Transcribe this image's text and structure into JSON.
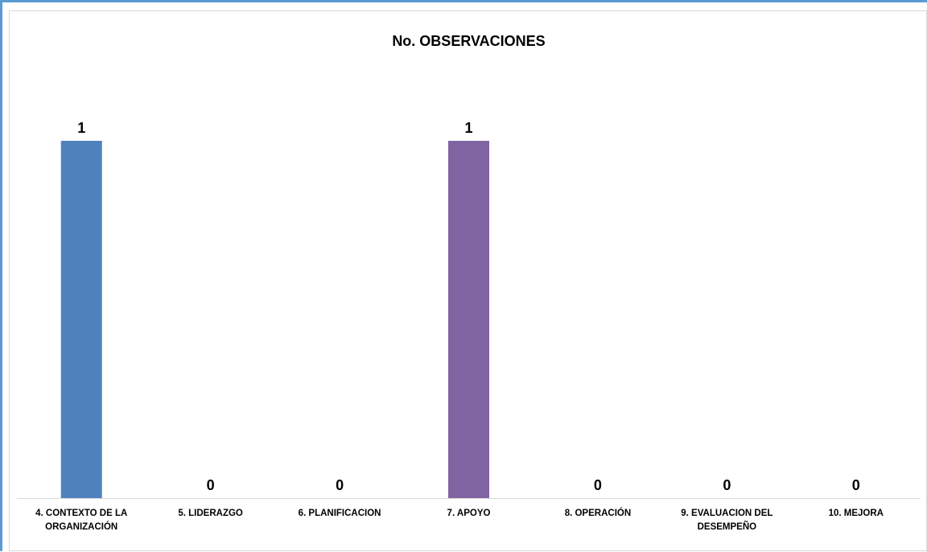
{
  "chart_data": {
    "type": "bar",
    "title": "No. OBSERVACIONES",
    "categories": [
      "4. CONTEXTO DE LA ORGANIZACIÓN",
      "5. LIDERAZGO",
      "6. PLANIFICACION",
      "7. APOYO",
      "8. OPERACIÓN",
      "9. EVALUACION DEL DESEMPEÑO",
      "10. MEJORA"
    ],
    "category_lines": [
      [
        "4. CONTEXTO DE LA",
        "ORGANIZACIÓN"
      ],
      [
        "5. LIDERAZGO"
      ],
      [
        "6. PLANIFICACION"
      ],
      [
        "7. APOYO"
      ],
      [
        "8. OPERACIÓN"
      ],
      [
        "9. EVALUACION DEL",
        "DESEMPEÑO"
      ],
      [
        "10. MEJORA"
      ]
    ],
    "values": [
      1,
      0,
      0,
      1,
      0,
      0,
      0
    ],
    "data_labels": [
      "1",
      "0",
      "0",
      "1",
      "0",
      "0",
      "0"
    ],
    "bar_colors": [
      "#4f81bd",
      "#4f81bd",
      "#4f81bd",
      "#8064a2",
      "#4f81bd",
      "#4f81bd",
      "#4f81bd"
    ],
    "ylim": [
      0,
      1
    ],
    "grid": false,
    "legend": "none",
    "xlabel": "",
    "ylabel": ""
  }
}
